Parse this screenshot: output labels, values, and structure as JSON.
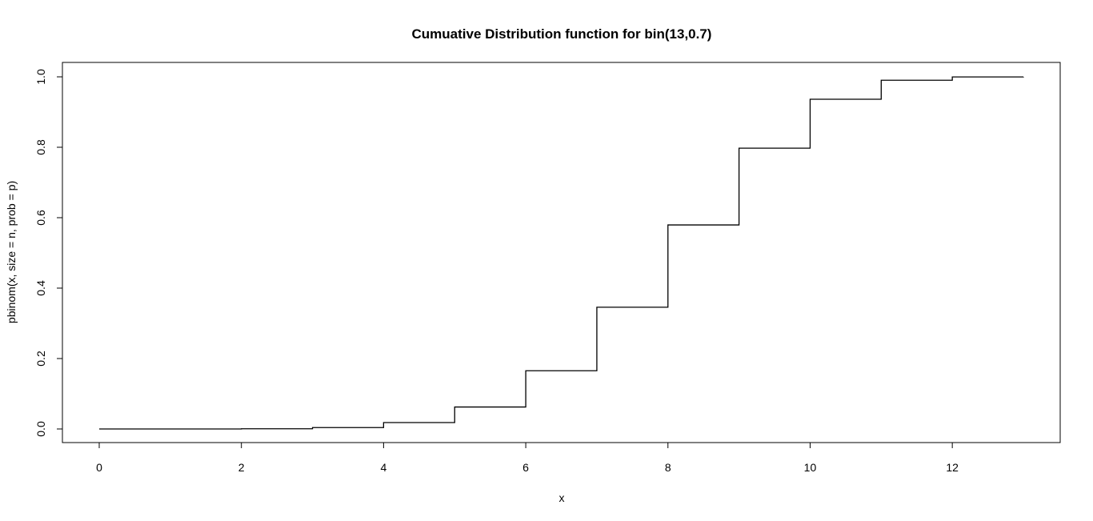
{
  "chart_data": {
    "type": "line",
    "style": "step",
    "title": "Cumuative Distribution function for bin(13,0.7)",
    "xlabel": "x",
    "ylabel": "pbinom(x, size = n, prob = p)",
    "xlim": [
      0,
      13
    ],
    "ylim": [
      0,
      1
    ],
    "x_ticks": [
      0,
      2,
      4,
      6,
      8,
      10,
      12
    ],
    "x_tick_labels": [
      "0",
      "2",
      "4",
      "6",
      "8",
      "10",
      "12"
    ],
    "y_ticks": [
      0,
      0.2,
      0.4,
      0.6,
      0.8,
      1.0
    ],
    "y_tick_labels": [
      "0.0",
      "0.2",
      "0.4",
      "0.6",
      "0.8",
      "1.0"
    ],
    "grid": false,
    "series": [
      {
        "x": [
          0,
          1,
          2,
          3,
          4,
          5,
          6,
          7,
          8,
          9,
          10,
          11,
          12,
          13
        ],
        "values": [
          2e-06,
          5e-05,
          0.0006,
          0.004,
          0.0182,
          0.0624,
          0.1654,
          0.3457,
          0.5794,
          0.7975,
          0.9363,
          0.9903,
          0.9997,
          1.0
        ]
      }
    ],
    "colors": {
      "line": "#000000",
      "background": "#ffffff"
    }
  }
}
